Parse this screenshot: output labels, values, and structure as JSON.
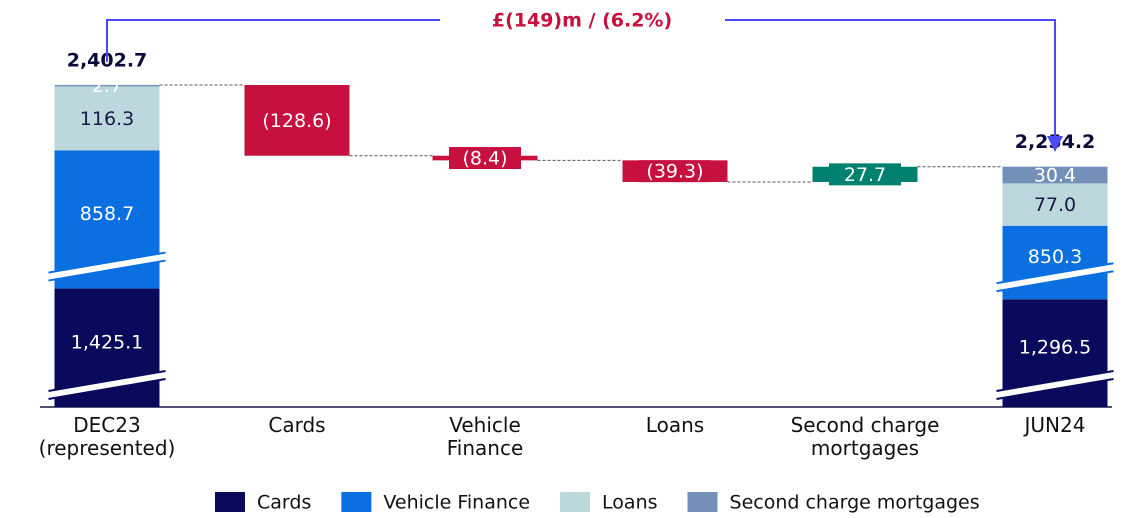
{
  "chart_data": {
    "type": "waterfall",
    "annotation": "£(149)m / (6.2%)",
    "categories": [
      "DEC23 (represented)",
      "Cards",
      "Vehicle Finance",
      "Loans",
      "Second charge mortgages",
      "JUN24"
    ],
    "start_total": {
      "value": 2402.7,
      "label": "2,402.7"
    },
    "end_total": {
      "value": 2254.2,
      "label": "2,254.2"
    },
    "change_colors": {
      "decrease": "#c8103e",
      "increase": "#00806f"
    },
    "series": [
      {
        "name": "Cards",
        "color": "#0a0a5c",
        "values": [
          1425.1,
          -128.6,
          null,
          null,
          null,
          1296.5
        ],
        "value_labels": [
          "1,425.1",
          "(128.6)",
          null,
          null,
          null,
          "1,296.5"
        ]
      },
      {
        "name": "Vehicle Finance",
        "color": "#0a6fe0",
        "values": [
          858.7,
          null,
          -8.4,
          null,
          null,
          850.3
        ],
        "value_labels": [
          "858.7",
          null,
          "(8.4)",
          null,
          null,
          "850.3"
        ]
      },
      {
        "name": "Loans",
        "color": "#bcd8dc",
        "values": [
          116.3,
          null,
          null,
          -39.3,
          null,
          77.0
        ],
        "value_labels": [
          "116.3",
          null,
          null,
          "(39.3)",
          null,
          "77.0"
        ]
      },
      {
        "name": "Second charge mortgages",
        "color": "#7390b8",
        "values": [
          2.7,
          null,
          null,
          null,
          27.7,
          30.4
        ],
        "value_labels": [
          "2.7",
          null,
          null,
          null,
          "27.7",
          "30.4"
        ]
      }
    ]
  }
}
